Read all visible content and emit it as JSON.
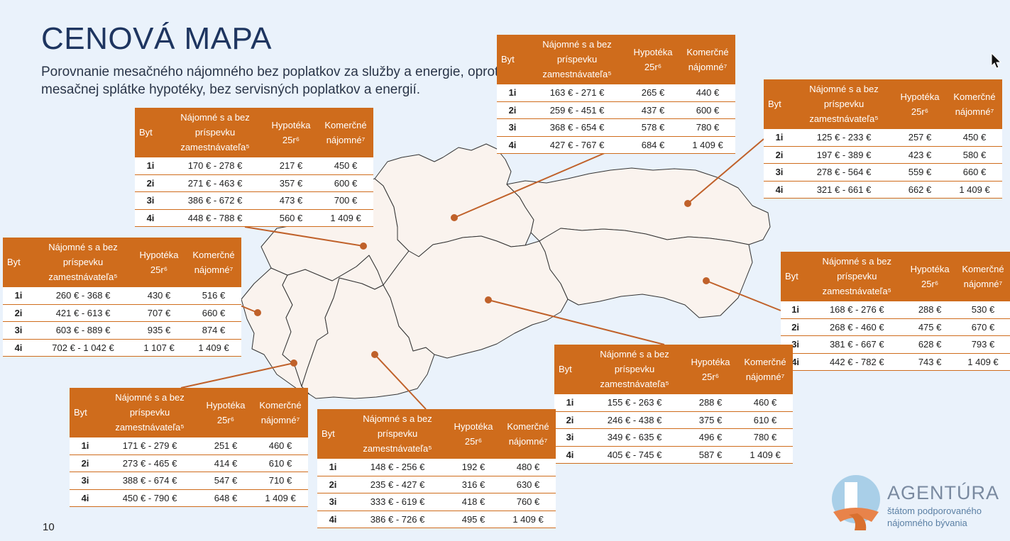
{
  "header": {
    "title": "CENOVÁ MAPA",
    "subtitle": "Porovnanie mesačného nájomného bez poplatkov za služby a energie, oproti mesačnej splátke hypotéky, bez servisných poplatkov a energií."
  },
  "columns": [
    "Byt",
    "Nájomné s a bez príspevku zamestnávateľa⁵",
    "Hypotéka 25r⁶",
    "Komerčné nájomné⁷"
  ],
  "tables": [
    {
      "rows": [
        [
          "1i",
          "163 € - 271 €",
          "265 €",
          "440 €"
        ],
        [
          "2i",
          "259 € - 451 €",
          "437 €",
          "600 €"
        ],
        [
          "3i",
          "368 € - 654 €",
          "578 €",
          "780 €"
        ],
        [
          "4i",
          "427 € - 767 €",
          "684 €",
          "1 409 €"
        ]
      ]
    },
    {
      "rows": [
        [
          "1i",
          "125 € - 233 €",
          "257 €",
          "450 €"
        ],
        [
          "2i",
          "197 € - 389 €",
          "423 €",
          "580 €"
        ],
        [
          "3i",
          "278 € - 564 €",
          "559 €",
          "660 €"
        ],
        [
          "4i",
          "321 € - 661 €",
          "662 €",
          "1 409 €"
        ]
      ]
    },
    {
      "rows": [
        [
          "1i",
          "170 € - 278 €",
          "217 €",
          "450 €"
        ],
        [
          "2i",
          "271 € - 463 €",
          "357 €",
          "600 €"
        ],
        [
          "3i",
          "386 € - 672 €",
          "473 €",
          "700 €"
        ],
        [
          "4i",
          "448 € - 788 €",
          "560 €",
          "1 409 €"
        ]
      ]
    },
    {
      "rows": [
        [
          "1i",
          "260 € - 368 €",
          "430 €",
          "516 €"
        ],
        [
          "2i",
          "421 € - 613 €",
          "707 €",
          "660 €"
        ],
        [
          "3i",
          "603 € - 889 €",
          "935 €",
          "874 €"
        ],
        [
          "4i",
          "702 € - 1 042 €",
          "1 107 €",
          "1 409 €"
        ]
      ]
    },
    {
      "rows": [
        [
          "1i",
          "168 € - 276 €",
          "288 €",
          "530 €"
        ],
        [
          "2i",
          "268 € - 460 €",
          "475 €",
          "670 €"
        ],
        [
          "3i",
          "381 € - 667 €",
          "628 €",
          "793 €"
        ],
        [
          "4i",
          "442 € - 782 €",
          "743 €",
          "1 409 €"
        ]
      ]
    },
    {
      "rows": [
        [
          "1i",
          "155 € - 263 €",
          "288 €",
          "460 €"
        ],
        [
          "2i",
          "246 € - 438 €",
          "375 €",
          "610 €"
        ],
        [
          "3i",
          "349 € - 635 €",
          "496 €",
          "780 €"
        ],
        [
          "4i",
          "405 € - 745 €",
          "587 €",
          "1 409 €"
        ]
      ]
    },
    {
      "rows": [
        [
          "1i",
          "171 € - 279 €",
          "251 €",
          "460 €"
        ],
        [
          "2i",
          "273 € - 465 €",
          "414 €",
          "610 €"
        ],
        [
          "3i",
          "388 € - 674 €",
          "547 €",
          "710 €"
        ],
        [
          "4i",
          "450 € - 790 €",
          "648 €",
          "1 409 €"
        ]
      ]
    },
    {
      "rows": [
        [
          "1i",
          "148 € - 256 €",
          "192 €",
          "480 €"
        ],
        [
          "2i",
          "235 € - 427 €",
          "316 €",
          "630 €"
        ],
        [
          "3i",
          "333 € - 619 €",
          "418 €",
          "760 €"
        ],
        [
          "4i",
          "386 € - 726 €",
          "495 €",
          "1 409 €"
        ]
      ]
    }
  ],
  "logo": {
    "name": "AGENTÚRA",
    "sub": "štátom podporovaného nájomného bývania"
  },
  "footer": {
    "page_number": "10"
  },
  "colors": {
    "accent": "#cf6c1c",
    "title": "#1e3560",
    "background": "#eaf2fb",
    "region_fill": "#faf3ee"
  }
}
